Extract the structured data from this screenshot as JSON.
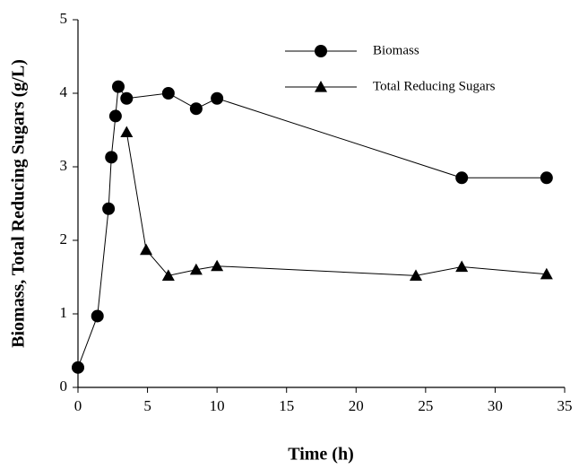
{
  "chart_data": {
    "type": "line",
    "x_label": "Time (h)",
    "y_label": "Biomass, Total Reducing Sugars (g/L)",
    "xlim": [
      0,
      35
    ],
    "xticks": [
      0,
      5,
      10,
      15,
      20,
      25,
      30,
      35
    ],
    "ylim": [
      0,
      5
    ],
    "yticks": [
      0,
      1,
      2,
      3,
      4,
      5
    ],
    "series": [
      {
        "name": "Biomass",
        "color": "#000000",
        "marker": "circle",
        "x": [
          0,
          1.4,
          2.2,
          2.4,
          2.7,
          2.9,
          3.5,
          6.5,
          8.5,
          10,
          27.6,
          33.7
        ],
        "values": [
          0.27,
          0.97,
          2.43,
          3.13,
          3.69,
          4.09,
          3.93,
          4.0,
          3.79,
          3.93,
          2.85,
          2.85
        ]
      },
      {
        "name": "Total Reducing Sugars",
        "color": "#000000",
        "marker": "triangle",
        "x": [
          3.5,
          4.9,
          6.5,
          8.5,
          10,
          24.3,
          27.6,
          33.7
        ],
        "values": [
          3.47,
          1.87,
          1.52,
          1.6,
          1.65,
          1.52,
          1.64,
          1.54
        ]
      }
    ]
  }
}
